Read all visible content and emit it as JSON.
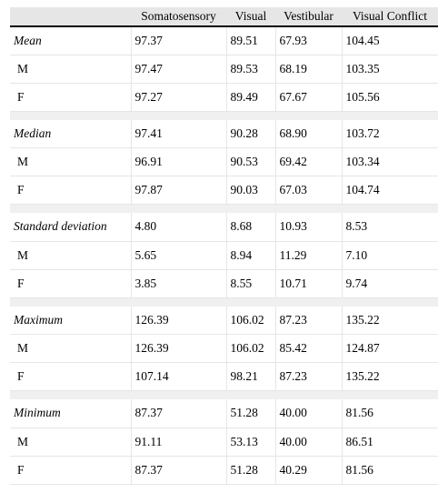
{
  "table": {
    "headers": [
      "",
      "Somatosensory",
      "Visual",
      "Vestibular",
      "Visual Conflict"
    ],
    "groups": [
      {
        "stat": "Mean",
        "total": [
          "97.37",
          "89.51",
          "67.93",
          "104.45"
        ],
        "rows": [
          {
            "label": "M",
            "values": [
              "97.47",
              "89.53",
              "68.19",
              "103.35"
            ]
          },
          {
            "label": "F",
            "values": [
              "97.27",
              "89.49",
              "67.67",
              "105.56"
            ]
          }
        ]
      },
      {
        "stat": "Median",
        "total": [
          "97.41",
          "90.28",
          "68.90",
          "103.72"
        ],
        "rows": [
          {
            "label": "M",
            "values": [
              "96.91",
              "90.53",
              "69.42",
              "103.34"
            ]
          },
          {
            "label": "F",
            "values": [
              "97.87",
              "90.03",
              "67.03",
              "104.74"
            ]
          }
        ]
      },
      {
        "stat": "Standard deviation",
        "total": [
          "4.80",
          "8.68",
          "10.93",
          "8.53"
        ],
        "rows": [
          {
            "label": "M",
            "values": [
              "5.65",
              "8.94",
              "11.29",
              "7.10"
            ]
          },
          {
            "label": "F",
            "values": [
              "3.85",
              "8.55",
              "10.71",
              "9.74"
            ]
          }
        ]
      },
      {
        "stat": "Maximum",
        "total": [
          "126.39",
          "106.02",
          "87.23",
          "135.22"
        ],
        "rows": [
          {
            "label": "M",
            "values": [
              "126.39",
              "106.02",
              "85.42",
              "124.87"
            ]
          },
          {
            "label": "F",
            "values": [
              "107.14",
              "98.21",
              "87.23",
              "135.22"
            ]
          }
        ]
      },
      {
        "stat": "Minimum",
        "total": [
          "87.37",
          "51.28",
          "40.00",
          "81.56"
        ],
        "rows": [
          {
            "label": "M",
            "values": [
              "91.11",
              "53.13",
              "40.00",
              "86.51"
            ]
          },
          {
            "label": "F",
            "values": [
              "87.37",
              "51.28",
              "40.29",
              "81.56"
            ]
          }
        ]
      }
    ]
  }
}
